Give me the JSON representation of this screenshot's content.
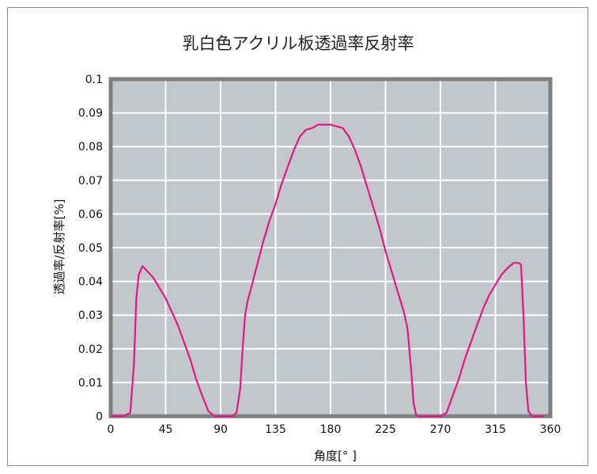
{
  "chart_data": {
    "type": "line",
    "title": "乳白色アクリル板透過率反射率",
    "xlabel": "角度[° ]",
    "ylabel": "透過率/反射率[%]",
    "xlim": [
      0,
      360
    ],
    "ylim": [
      0,
      0.1
    ],
    "x_ticks": [
      0,
      45,
      90,
      135,
      180,
      225,
      270,
      315,
      360
    ],
    "y_ticks": [
      0,
      0.01,
      0.02,
      0.03,
      0.04,
      0.05,
      0.06,
      0.07,
      0.08,
      0.09,
      0.1
    ],
    "x_tick_labels": [
      "0",
      "45",
      "90",
      "135",
      "180",
      "225",
      "270",
      "315",
      "360"
    ],
    "y_tick_labels": [
      "0",
      "0.01",
      "0.02",
      "0.03",
      "0.04",
      "0.05",
      "0.06",
      "0.07",
      "0.08",
      "0.09",
      "0.1"
    ],
    "grid": true,
    "colors": {
      "plot_bg": "#c2c7cc",
      "line": "#e6158a",
      "grid": "#ffffff",
      "border": "#7f7f7f"
    },
    "series": [
      {
        "x": [
          0,
          10,
          16,
          19,
          21,
          23,
          26,
          30,
          35,
          40,
          45,
          50,
          55,
          60,
          65,
          70,
          75,
          80,
          85,
          90,
          95,
          100,
          103,
          106,
          108,
          110,
          112,
          115,
          120,
          125,
          130,
          135,
          140,
          145,
          150,
          155,
          160,
          165,
          170,
          175,
          180,
          185,
          190,
          195,
          200,
          205,
          210,
          215,
          220,
          225,
          230,
          235,
          240,
          243,
          246,
          248,
          250,
          252,
          255,
          260,
          265,
          270,
          275,
          280,
          285,
          290,
          295,
          300,
          305,
          310,
          315,
          320,
          325,
          330,
          334,
          336,
          338,
          340,
          342,
          345,
          350,
          355
        ],
        "y": [
          0,
          0,
          0.001,
          0.015,
          0.035,
          0.042,
          0.0445,
          0.043,
          0.041,
          0.038,
          0.035,
          0.031,
          0.027,
          0.022,
          0.017,
          0.011,
          0.006,
          0.0015,
          0,
          0,
          0,
          0,
          0.001,
          0.008,
          0.02,
          0.03,
          0.034,
          0.038,
          0.045,
          0.052,
          0.058,
          0.063,
          0.069,
          0.074,
          0.079,
          0.083,
          0.085,
          0.0855,
          0.0865,
          0.0865,
          0.0865,
          0.086,
          0.0855,
          0.083,
          0.079,
          0.074,
          0.068,
          0.062,
          0.056,
          0.049,
          0.043,
          0.037,
          0.031,
          0.026,
          0.014,
          0.004,
          0.0005,
          0,
          0,
          0,
          0,
          0,
          0.001,
          0.006,
          0.011,
          0.017,
          0.022,
          0.027,
          0.032,
          0.036,
          0.039,
          0.042,
          0.044,
          0.0455,
          0.0455,
          0.045,
          0.03,
          0.01,
          0.0015,
          0,
          0,
          0
        ]
      }
    ]
  }
}
